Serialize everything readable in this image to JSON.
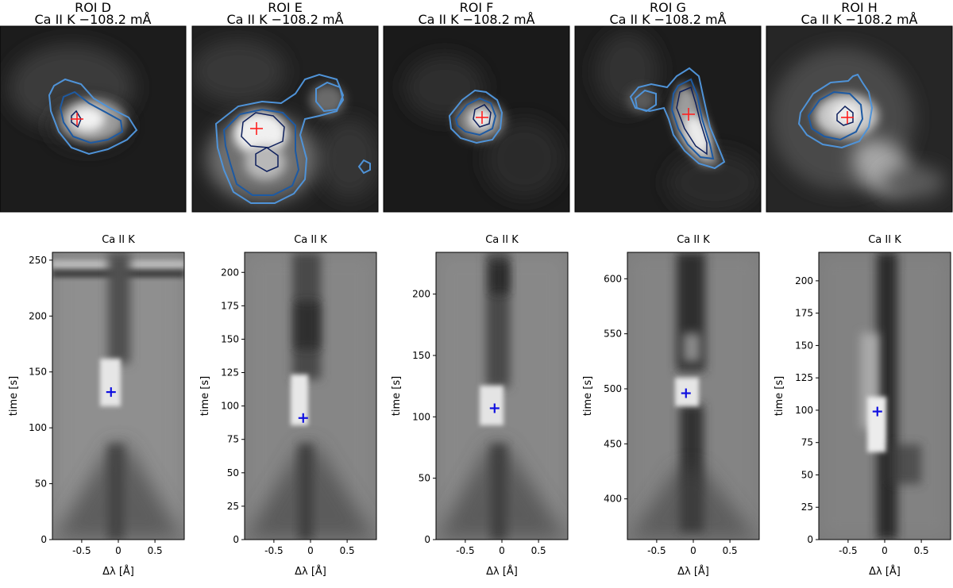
{
  "figure": {
    "top_panels": [
      {
        "roi": "ROI D",
        "subtitle": "Ca II K −108.2 mÅ"
      },
      {
        "roi": "ROI E",
        "subtitle": "Ca II K −108.2 mÅ"
      },
      {
        "roi": "ROI F",
        "subtitle": "Ca II K −108.2 mÅ"
      },
      {
        "roi": "ROI G",
        "subtitle": "Ca II K −108.2 mÅ"
      },
      {
        "roi": "ROI H",
        "subtitle": "Ca II K −108.2 mÅ"
      }
    ],
    "colors": {
      "outer_contour": "#4f93d8",
      "mid_contour": "#1d5aa3",
      "inner_contour": "#0d1f5c",
      "image_marker": "#ff2020",
      "plot_marker": "#1010e0"
    }
  },
  "chart_data": [
    {
      "type": "heatmap",
      "title": "Ca II K",
      "xlabel": "Δλ [Å]",
      "ylabel": "time [s]",
      "xlim": [
        -0.9,
        0.9
      ],
      "ylim": [
        0,
        257
      ],
      "xticks": [
        -0.5,
        0,
        0.5
      ],
      "xtick_labels": [
        "-0.5",
        "0",
        "0.5"
      ],
      "yticks": [
        0,
        50,
        100,
        150,
        200,
        250
      ],
      "ytick_labels": [
        "0",
        "50",
        "100",
        "150",
        "200",
        "250"
      ],
      "marker": {
        "x": -0.1,
        "y": 132
      }
    },
    {
      "type": "heatmap",
      "title": "Ca II K",
      "xlabel": "Δλ [Å]",
      "ylabel": "time [s]",
      "xlim": [
        -0.9,
        0.9
      ],
      "ylim": [
        0,
        215
      ],
      "xticks": [
        -0.5,
        0,
        0.5
      ],
      "xtick_labels": [
        "-0.5",
        "0",
        "0.5"
      ],
      "yticks": [
        0,
        25,
        50,
        75,
        100,
        125,
        150,
        175,
        200
      ],
      "ytick_labels": [
        "0",
        "25",
        "50",
        "75",
        "100",
        "125",
        "150",
        "175",
        "200"
      ],
      "marker": {
        "x": -0.1,
        "y": 91
      }
    },
    {
      "type": "heatmap",
      "title": "Ca II K",
      "xlabel": "Δλ [Å]",
      "ylabel": "time [s]",
      "xlim": [
        -0.9,
        0.9
      ],
      "ylim": [
        0,
        234
      ],
      "xticks": [
        -0.5,
        0,
        0.5
      ],
      "xtick_labels": [
        "-0.5",
        "0",
        "0.5"
      ],
      "yticks": [
        0,
        50,
        100,
        150,
        200
      ],
      "ytick_labels": [
        "0",
        "50",
        "100",
        "150",
        "200"
      ],
      "marker": {
        "x": -0.1,
        "y": 107
      }
    },
    {
      "type": "heatmap",
      "title": "Ca II K",
      "xlabel": "Δλ [Å]",
      "ylabel": "time [s]",
      "xlim": [
        -0.9,
        0.9
      ],
      "ylim": [
        363,
        624
      ],
      "xticks": [
        -0.5,
        0,
        0.5
      ],
      "xtick_labels": [
        "-0.5",
        "0",
        "0.5"
      ],
      "yticks": [
        400,
        450,
        500,
        550,
        600
      ],
      "ytick_labels": [
        "400",
        "450",
        "500",
        "550",
        "600"
      ],
      "marker": {
        "x": -0.1,
        "y": 496
      }
    },
    {
      "type": "heatmap",
      "title": "Ca II K",
      "xlabel": "Δλ [Å]",
      "ylabel": "time [s]",
      "xlim": [
        -0.9,
        0.9
      ],
      "ylim": [
        0,
        222
      ],
      "xticks": [
        -0.5,
        0,
        0.5
      ],
      "xtick_labels": [
        "-0.5",
        "0",
        "0.5"
      ],
      "yticks": [
        0,
        25,
        50,
        75,
        100,
        125,
        150,
        175,
        200
      ],
      "ytick_labels": [
        "0",
        "25",
        "50",
        "75",
        "100",
        "125",
        "150",
        "175",
        "200"
      ],
      "marker": {
        "x": -0.1,
        "y": 99
      }
    }
  ]
}
